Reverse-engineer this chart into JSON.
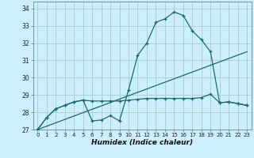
{
  "title": "",
  "xlabel": "Humidex (Indice chaleur)",
  "background_color": "#cceeff",
  "grid_color": "#aacccc",
  "line_color": "#1a6b6b",
  "xlim": [
    -0.5,
    23.5
  ],
  "ylim": [
    27,
    34.4
  ],
  "xticks": [
    0,
    1,
    2,
    3,
    4,
    5,
    6,
    7,
    8,
    9,
    10,
    11,
    12,
    13,
    14,
    15,
    16,
    17,
    18,
    19,
    20,
    21,
    22,
    23
  ],
  "yticks": [
    27,
    28,
    29,
    30,
    31,
    32,
    33,
    34
  ],
  "curve1_x": [
    0,
    1,
    2,
    3,
    4,
    5,
    6,
    7,
    8,
    9,
    10,
    11,
    12,
    13,
    14,
    15,
    16,
    17,
    18,
    19,
    20,
    21,
    22,
    23
  ],
  "curve1_y": [
    27.0,
    27.7,
    28.2,
    28.4,
    28.6,
    28.7,
    27.5,
    27.55,
    27.8,
    27.5,
    29.3,
    31.3,
    32.0,
    33.2,
    33.4,
    33.8,
    33.6,
    32.7,
    32.2,
    31.5,
    28.55,
    28.6,
    28.5,
    28.4
  ],
  "curve2_x": [
    0,
    1,
    2,
    3,
    4,
    5,
    6,
    7,
    8,
    9,
    10,
    11,
    12,
    13,
    14,
    15,
    16,
    17,
    18,
    19,
    20,
    21,
    22,
    23
  ],
  "curve2_y": [
    27.0,
    27.7,
    28.2,
    28.4,
    28.6,
    28.7,
    28.65,
    28.65,
    28.65,
    28.65,
    28.7,
    28.75,
    28.8,
    28.8,
    28.8,
    28.8,
    28.8,
    28.8,
    28.85,
    29.05,
    28.55,
    28.6,
    28.5,
    28.4
  ],
  "curve3_x": [
    0,
    23
  ],
  "curve3_y": [
    27.0,
    31.5
  ],
  "marker_size": 3.5,
  "linewidth": 0.9
}
